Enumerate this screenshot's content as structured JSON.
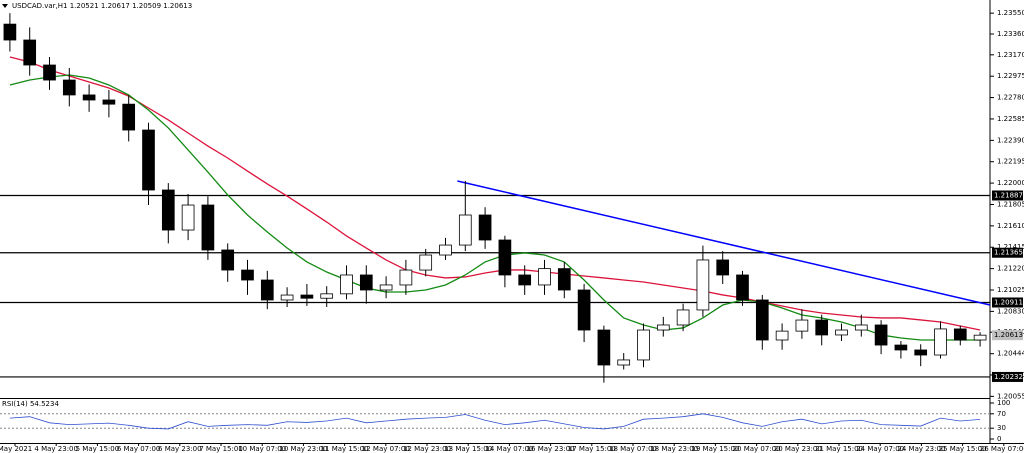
{
  "chart_data": {
    "type": "candlestick",
    "title": "USDCAD.var,H1  1.20521 1.20617 1.20509 1.20613",
    "open": [
      1.2345,
      1.23305,
      1.23077,
      1.2294,
      1.22804,
      1.22758,
      1.2272,
      1.22484,
      1.21937,
      1.21572,
      1.218,
      1.2139,
      1.21207,
      1.21116,
      1.20934,
      1.20979,
      1.2095,
      1.2099,
      1.21162,
      1.21025,
      1.21071,
      1.21207,
      1.21344,
      1.21435,
      1.21709,
      1.21481,
      1.21162,
      1.21071,
      1.2122,
      1.21025,
      1.2066,
      1.20341,
      1.20387,
      1.2066,
      1.20706,
      1.20843,
      1.21299,
      1.21162,
      1.20934,
      1.20569,
      1.2065,
      1.20751,
      1.20615,
      1.2066,
      1.20706,
      1.20523,
      1.20478,
      1.20432,
      1.2067,
      1.20569
    ],
    "high": [
      1.2355,
      1.2342,
      1.2315,
      1.2305,
      1.229,
      1.2285,
      1.228,
      1.2255,
      1.22,
      1.219,
      1.2188,
      1.2145,
      1.213,
      1.212,
      1.2105,
      1.2108,
      1.2106,
      1.2125,
      1.2125,
      1.2115,
      1.213,
      1.214,
      1.215,
      1.2202,
      1.2178,
      1.2152,
      1.2125,
      1.213,
      1.2128,
      1.2108,
      1.207,
      1.2045,
      1.2072,
      1.2078,
      1.209,
      1.2143,
      1.2138,
      1.212,
      1.2098,
      1.2072,
      1.2085,
      1.208,
      1.2072,
      1.208,
      1.2075,
      1.2056,
      1.2053,
      1.2074,
      1.207,
      1.2064
    ],
    "low": [
      1.232,
      1.2298,
      1.2285,
      1.227,
      1.2265,
      1.226,
      1.2238,
      1.218,
      1.2145,
      1.2148,
      1.213,
      1.211,
      1.2098,
      1.2085,
      1.2087,
      1.2088,
      1.2087,
      1.2094,
      1.209,
      1.2095,
      1.2098,
      1.2115,
      1.213,
      1.2138,
      1.214,
      1.2105,
      1.2098,
      1.2098,
      1.2095,
      1.2055,
      1.2018,
      1.203,
      1.2032,
      1.206,
      1.2065,
      1.2078,
      1.2108,
      1.2088,
      1.2048,
      1.2048,
      1.2058,
      1.2052,
      1.2056,
      1.206,
      1.2044,
      1.204,
      1.2033,
      1.204,
      1.2052,
      1.20509
    ],
    "close": [
      1.23305,
      1.23077,
      1.2294,
      1.22804,
      1.22758,
      1.2272,
      1.22484,
      1.21937,
      1.21572,
      1.218,
      1.2139,
      1.21207,
      1.21116,
      1.20934,
      1.20979,
      1.2095,
      1.2099,
      1.21162,
      1.21025,
      1.21071,
      1.21207,
      1.21344,
      1.21435,
      1.21709,
      1.21481,
      1.21162,
      1.21071,
      1.2122,
      1.21025,
      1.2066,
      1.20341,
      1.20387,
      1.2066,
      1.20706,
      1.20843,
      1.21299,
      1.21162,
      1.20934,
      1.20569,
      1.2065,
      1.20751,
      1.20615,
      1.2066,
      1.20706,
      1.20523,
      1.20478,
      1.20432,
      1.2067,
      1.20569,
      1.20613
    ],
    "moving_averages": [
      {
        "color": "#dc143c",
        "values": [
          1.2315,
          1.23105,
          1.23032,
          1.22977,
          1.22922,
          1.22867,
          1.22794,
          1.22685,
          1.22576,
          1.22457,
          1.22338,
          1.22229,
          1.2211,
          1.21992,
          1.21882,
          1.21764,
          1.21645,
          1.21518,
          1.21408,
          1.21299,
          1.21208,
          1.21162,
          1.21135,
          1.21144,
          1.2118,
          1.21208,
          1.21208,
          1.21189,
          1.21171,
          1.21153,
          1.21135,
          1.21116,
          1.21098,
          1.21071,
          1.21043,
          1.21016,
          1.2098,
          1.20952,
          1.20916,
          1.20879,
          1.20843,
          1.20815,
          1.20797,
          1.20779,
          1.2077,
          1.2077,
          1.20752,
          1.20733,
          1.20697,
          1.2066
        ]
      },
      {
        "color": "#138a13",
        "values": [
          1.22895,
          1.2294,
          1.22968,
          1.22986,
          1.22959,
          1.22895,
          1.22804,
          1.22667,
          1.22503,
          1.22302,
          1.22101,
          1.21892,
          1.21709,
          1.21554,
          1.21408,
          1.21281,
          1.21189,
          1.21116,
          1.21043,
          1.21007,
          1.21007,
          1.21025,
          1.21071,
          1.21162,
          1.21281,
          1.21344,
          1.21363,
          1.21344,
          1.21281,
          1.21116,
          1.20934,
          1.2077,
          1.20706,
          1.2066,
          1.20679,
          1.2077,
          1.20888,
          1.20934,
          1.20916,
          1.20861,
          1.20797,
          1.2077,
          1.20733,
          1.20679,
          1.20615,
          1.20587,
          1.20569,
          1.20569,
          1.20569,
          1.20569
        ]
      }
    ],
    "trendline": {
      "color": "#0000ff",
      "x": [
        22.6,
        49.5
      ],
      "y": [
        1.22019,
        1.20888
      ]
    },
    "levels": [
      {
        "value": 1.21887,
        "label": "1.21887"
      },
      {
        "value": 1.21365,
        "label": "1.21365"
      },
      {
        "value": 1.20911,
        "label": "1.20911"
      },
      {
        "value": 1.20232,
        "label": "1.20232"
      }
    ],
    "current_price": {
      "value": 1.20613,
      "label": "1.20613"
    },
    "ylim": [
      1.2004,
      1.2367
    ],
    "yticks": [
      {
        "value": 1.2355,
        "label": "1.23550"
      },
      {
        "value": 1.2336,
        "label": "1.23360"
      },
      {
        "value": 1.2317,
        "label": "1.23170"
      },
      {
        "value": 1.22975,
        "label": "1.22975"
      },
      {
        "value": 1.2278,
        "label": "1.22780"
      },
      {
        "value": 1.22585,
        "label": "1.22585"
      },
      {
        "value": 1.2239,
        "label": "1.22390"
      },
      {
        "value": 1.22195,
        "label": "1.22195"
      },
      {
        "value": 1.22,
        "label": "1.22000"
      },
      {
        "value": 1.21805,
        "label": "1.21805"
      },
      {
        "value": 1.2161,
        "label": "1.21610"
      },
      {
        "value": 1.21415,
        "label": "1.21415"
      },
      {
        "value": 1.2122,
        "label": "1.21220"
      },
      {
        "value": 1.21025,
        "label": "1.21025"
      },
      {
        "value": 1.2083,
        "label": "1.20830"
      },
      {
        "value": 1.2064,
        "label": "1.20640"
      },
      {
        "value": 1.20444,
        "label": "1.20444"
      },
      {
        "value": 1.2025,
        "label": "1.20250"
      },
      {
        "value": 1.20055,
        "label": "1.20055"
      }
    ],
    "x_labels": [
      "May 2021",
      "4 May 23:00",
      "5 May 15:00",
      "6 May 07:00",
      "6 May 23:00",
      "7 May 15:00",
      "10 May 07:00",
      "10 May 23:00",
      "11 May 15:00",
      "12 May 07:00",
      "12 May 23:00",
      "13 May 15:00",
      "14 May 07:00",
      "16 May 23:00",
      "17 May 15:00",
      "18 May 07:00",
      "18 May 23:00",
      "19 May 15:00",
      "20 May 07:00",
      "20 May 23:00",
      "21 May 15:00",
      "24 May 07:00",
      "24 May 23:00",
      "25 May 15:00",
      "26 May 07:00"
    ],
    "rsi": {
      "title": "RSI(14) 54.5234",
      "color": "#2f4fd0",
      "ylim": [
        0,
        100
      ],
      "yticks": [
        100,
        70,
        30,
        0
      ],
      "values": [
        58,
        62,
        45,
        40,
        42,
        44,
        38,
        30,
        28,
        48,
        35,
        38,
        40,
        38,
        48,
        46,
        50,
        58,
        45,
        50,
        55,
        58,
        60,
        68,
        52,
        40,
        45,
        52,
        42,
        32,
        28,
        35,
        55,
        58,
        62,
        70,
        60,
        45,
        35,
        48,
        55,
        42,
        50,
        52,
        40,
        38,
        36,
        58,
        50,
        54.5234
      ]
    }
  }
}
